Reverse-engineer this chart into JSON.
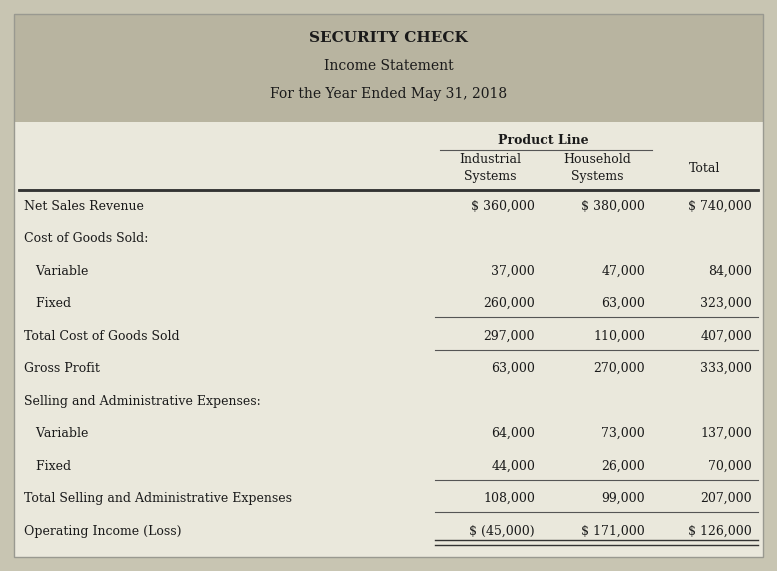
{
  "title_line1": "SECURITY CHECK",
  "title_line2": "Income Statement",
  "title_line3": "For the Year Ended May 31, 2018",
  "header_bg": "#b8b4a0",
  "table_bg": "#eae8dc",
  "outer_bg": "#c8c5b2",
  "col_headers": [
    "Industrial\nSystems",
    "Household\nSystems",
    "Total"
  ],
  "product_line_label": "Product Line",
  "rows": [
    {
      "label": "Net Sales Revenue",
      "indent": 0,
      "vals": [
        "$ 360,000",
        "$ 380,000",
        "$ 740,000"
      ],
      "bold": false,
      "line_above_thick": true,
      "line_below": false,
      "double_below": false
    },
    {
      "label": "Cost of Goods Sold:",
      "indent": 0,
      "vals": [
        "",
        "",
        ""
      ],
      "bold": false,
      "line_above_thick": false,
      "line_below": false,
      "double_below": false
    },
    {
      "label": "   Variable",
      "indent": 0,
      "vals": [
        "37,000",
        "47,000",
        "84,000"
      ],
      "bold": false,
      "line_above_thick": false,
      "line_below": false,
      "double_below": false
    },
    {
      "label": "   Fixed",
      "indent": 0,
      "vals": [
        "260,000",
        "63,000",
        "323,000"
      ],
      "bold": false,
      "line_above_thick": false,
      "line_below": true,
      "double_below": false
    },
    {
      "label": "Total Cost of Goods Sold",
      "indent": 0,
      "vals": [
        "297,000",
        "110,000",
        "407,000"
      ],
      "bold": false,
      "line_above_thick": false,
      "line_below": true,
      "double_below": false
    },
    {
      "label": "Gross Profit",
      "indent": 0,
      "vals": [
        "63,000",
        "270,000",
        "333,000"
      ],
      "bold": false,
      "line_above_thick": false,
      "line_below": false,
      "double_below": false
    },
    {
      "label": "Selling and Administrative Expenses:",
      "indent": 0,
      "vals": [
        "",
        "",
        ""
      ],
      "bold": false,
      "line_above_thick": false,
      "line_below": false,
      "double_below": false
    },
    {
      "label": "   Variable",
      "indent": 0,
      "vals": [
        "64,000",
        "73,000",
        "137,000"
      ],
      "bold": false,
      "line_above_thick": false,
      "line_below": false,
      "double_below": false
    },
    {
      "label": "   Fixed",
      "indent": 0,
      "vals": [
        "44,000",
        "26,000",
        "70,000"
      ],
      "bold": false,
      "line_above_thick": false,
      "line_below": true,
      "double_below": false
    },
    {
      "label": "Total Selling and Administrative Expenses",
      "indent": 0,
      "vals": [
        "108,000",
        "99,000",
        "207,000"
      ],
      "bold": false,
      "line_above_thick": false,
      "line_below": true,
      "double_below": false
    },
    {
      "label": "Operating Income (Loss)",
      "indent": 0,
      "vals": [
        "$ (45,000)",
        "$ 171,000",
        "$ 126,000"
      ],
      "bold": false,
      "line_above_thick": false,
      "line_below": false,
      "double_below": true
    }
  ]
}
